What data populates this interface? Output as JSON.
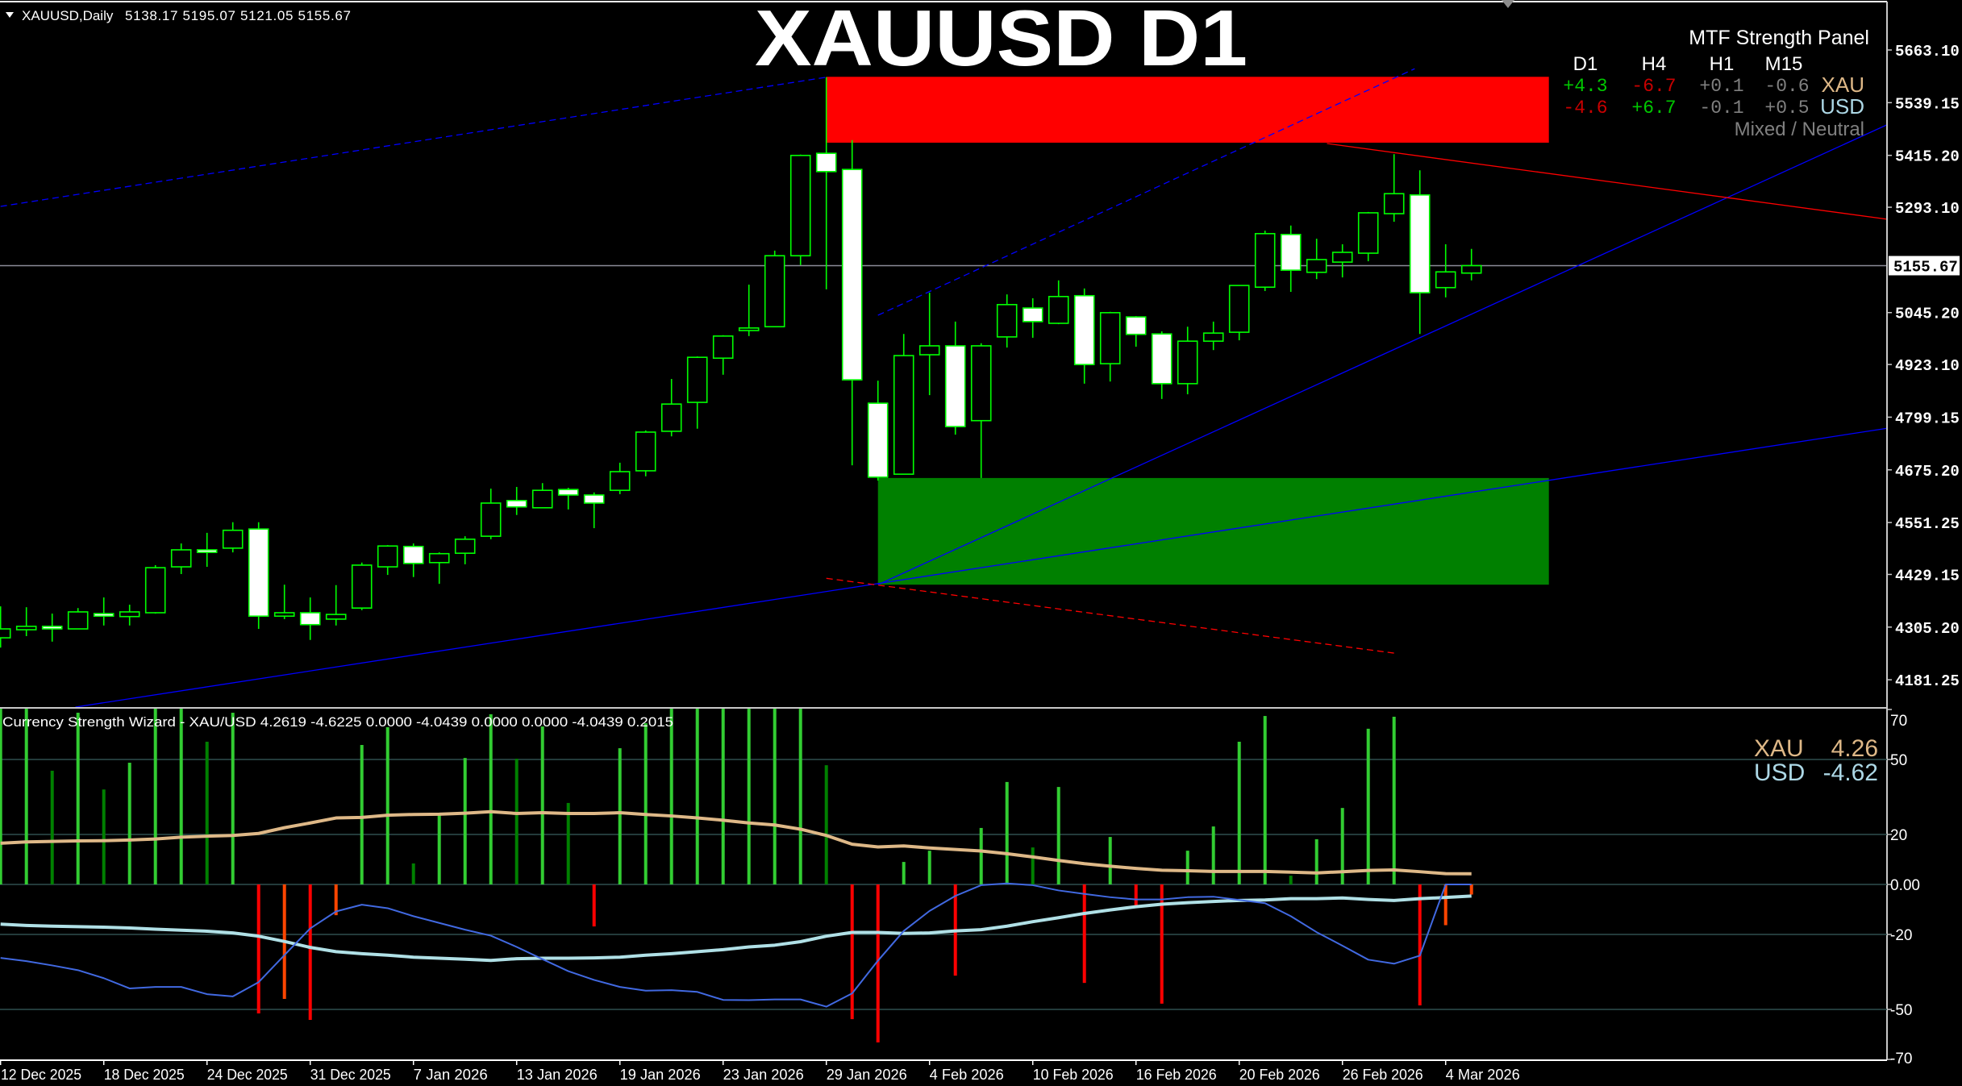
{
  "header": {
    "symbol_period": "XAUUSD,Daily",
    "ohlc": "5138.17 5195.07 5121.05 5155.67"
  },
  "watermark_title": "XAUUSD D1",
  "mtf_panel": {
    "title": "MTF Strength Panel",
    "timeframes": [
      "D1",
      "H4",
      "H1",
      "M15"
    ],
    "rows": [
      {
        "currency": "XAU",
        "values": [
          "+4.3",
          "-6.7",
          "+0.1",
          "-0.6"
        ],
        "value_colors": [
          "#00c800",
          "#c80000",
          "#808080",
          "#808080"
        ],
        "label_color": "#deb887"
      },
      {
        "currency": "USD",
        "values": [
          "-4.6",
          "+6.7",
          "-0.1",
          "+0.5"
        ],
        "value_colors": [
          "#c80000",
          "#00c800",
          "#808080",
          "#808080"
        ],
        "label_color": "#add8e6"
      }
    ],
    "status": "Mixed / Neutral"
  },
  "indicator_legend": {
    "rows": [
      {
        "currency": "XAU",
        "value": "4.26",
        "color": "#deb887"
      },
      {
        "currency": "USD",
        "value": "-4.62",
        "color": "#add8e6"
      }
    ]
  },
  "colors": {
    "background": "#000000",
    "candle_outline": "#00ff00",
    "bear_body": "#ffffff",
    "bull_body": "#000000",
    "supply_zone": "#ff0000",
    "demand_zone": "#008000",
    "trendline_blue": "#0000ff",
    "trendline_red": "#ff0000",
    "current_price_line": "#8c8c99",
    "grid": "#2f4f4f",
    "hist_bull_strong": "#32cd32",
    "hist_bull_weak": "#008000",
    "hist_bear_strong": "#ff0000",
    "hist_bear_weak": "#ff4500",
    "xau_line": "#deb887",
    "usd_line": "#b0e0e6",
    "signal_line": "#4169e1"
  },
  "chart_data": [
    {
      "type": "candlestick",
      "symbol": "XAUUSD",
      "timeframe": "Daily",
      "current_price": "5155.67",
      "x_tick_labels": [
        "12 Dec 2025",
        "18 Dec 2025",
        "24 Dec 2025",
        "31 Dec 2025",
        "7 Jan 2026",
        "13 Jan 2026",
        "19 Jan 2026",
        "23 Jan 2026",
        "29 Jan 2026",
        "4 Feb 2026",
        "10 Feb 2026",
        "16 Feb 2026",
        "20 Feb 2026",
        "26 Feb 2026",
        "4 Mar 2026"
      ],
      "y_tick_labels": [
        "5663.10",
        "5539.15",
        "5415.20",
        "5293.10",
        "5045.20",
        "4923.10",
        "4799.15",
        "4675.20",
        "4551.25",
        "4429.15",
        "4305.20",
        "4181.25"
      ],
      "ylim": [
        4117,
        5780
      ],
      "open": [
        4280,
        4299,
        4307,
        4301,
        4337,
        4330,
        4339,
        4447,
        4487,
        4491,
        4536,
        4331,
        4339,
        4324,
        4350,
        4447,
        4495,
        4457,
        4479,
        4519,
        4603,
        4586,
        4629,
        4616,
        4627,
        4673,
        4766,
        4834,
        4938,
        5003,
        5012,
        5179,
        5420,
        5382,
        4832,
        4665,
        4946,
        4967,
        4791,
        4988,
        5056,
        5020,
        5085,
        4925,
        5035,
        4995,
        4878,
        4978,
        4999,
        5105,
        5229,
        5140,
        5164,
        5185,
        5278,
        5322,
        5104,
        5138.17
      ],
      "high": [
        4354,
        4352,
        4337,
        4350,
        4375,
        4358,
        4451,
        4502,
        4527,
        4552,
        4552,
        4405,
        4375,
        4404,
        4457,
        4498,
        4502,
        4481,
        4519,
        4631,
        4635,
        4644,
        4633,
        4622,
        4692,
        4768,
        4889,
        4942,
        4992,
        5111,
        5191,
        5417,
        5599,
        5451,
        4885,
        4995,
        5092,
        5024,
        4973,
        5088,
        5079,
        5121,
        5102,
        5047,
        5037,
        5001,
        5012,
        5024,
        5109,
        5238,
        5250,
        5219,
        5206,
        5282,
        5418,
        5380,
        5206,
        5195.07
      ],
      "low": [
        4257,
        4284,
        4271,
        4301,
        4309,
        4309,
        4337,
        4430,
        4447,
        4481,
        4301,
        4324,
        4275,
        4309,
        4345,
        4428,
        4423,
        4407,
        4453,
        4512,
        4569,
        4586,
        4582,
        4538,
        4618,
        4660,
        4754,
        4772,
        4899,
        4990,
        5012,
        5157,
        5100,
        4686,
        4650,
        4665,
        4851,
        4758,
        4656,
        4963,
        4986,
        5018,
        4878,
        4883,
        4965,
        4842,
        4853,
        4957,
        4980,
        5096,
        5094,
        5124,
        5128,
        5166,
        5259,
        4995,
        5081,
        5121.05
      ],
      "close": [
        4301,
        4307,
        4301,
        4341,
        4331,
        4341,
        4445,
        4487,
        4481,
        4533,
        4331,
        4339,
        4311,
        4335,
        4451,
        4496,
        4455,
        4478,
        4512,
        4597,
        4588,
        4627,
        4616,
        4597,
        4671,
        4764,
        4830,
        4940,
        4990,
        5009,
        5179,
        5415,
        5377,
        4887,
        4658,
        4944,
        4967,
        4777,
        4967,
        5064,
        5024,
        5083,
        4923,
        5045,
        4994,
        4878,
        4978,
        4997,
        5109,
        5231,
        5145,
        5170,
        5187,
        5280,
        5325,
        5092,
        5141,
        5155.67
      ],
      "zones": [
        {
          "kind": "supply",
          "from_bar": 32,
          "to_bar": 60,
          "price_top": 5600,
          "price_bottom": 5445,
          "color": "#ff0000"
        },
        {
          "kind": "demand",
          "from_bar": 34,
          "to_bar": 60,
          "price_top": 4656,
          "price_bottom": 4405,
          "color": "#008000"
        }
      ],
      "trendlines": [
        {
          "bar1": 0,
          "price1": 5295,
          "bar2": 32,
          "price2": 5599,
          "color": "#0000ff",
          "dashed": true
        },
        {
          "bar1": 34,
          "price1": 5039,
          "bar2": 54.8,
          "price2": 5619,
          "color": "#0000ff",
          "dashed": true
        },
        {
          "bar1": 34,
          "price1": 4405,
          "bar2": 73.1,
          "price2": 5487,
          "color": "#0000ff",
          "dashed": false
        },
        {
          "bar1": 2.9,
          "price1": 4117,
          "bar2": 73.1,
          "price2": 4773,
          "color": "#0000ff",
          "dashed": false
        },
        {
          "bar1": 51.4,
          "price1": 5443,
          "bar2": 73.1,
          "price2": 5265,
          "color": "#ff0000",
          "dashed": false
        },
        {
          "bar1": 32,
          "price1": 4420,
          "bar2": 54,
          "price2": 4244,
          "color": "#ff0000",
          "dashed": true
        }
      ]
    },
    {
      "type": "bar",
      "title": "Currency Strength Wizard - XAU/USD 4.2619 -4.6225 0.0000 -4.0439 0.0000 0.0000 -4.0439 0.2015",
      "y_tick_labels": [
        "70",
        "50",
        "20",
        "0.00",
        "-20",
        "-50",
        "-70"
      ],
      "y_ticks": [
        70,
        50,
        20,
        0,
        -20,
        -50,
        -70
      ],
      "gridlines": [
        50,
        20,
        0,
        -20,
        -50
      ],
      "ylim": [
        -70,
        70
      ],
      "histogram": [
        75,
        75,
        45.5,
        68.7,
        38,
        48.7,
        75,
        75,
        57.1,
        68.7,
        -51.6,
        -45.8,
        -54.2,
        -12.3,
        55.8,
        62.9,
        8.4,
        28.7,
        50.6,
        68.1,
        50.3,
        63.2,
        32.6,
        -16.8,
        54.5,
        64.5,
        75,
        75,
        75,
        75,
        75,
        75,
        47.7,
        -53.9,
        -63.2,
        9,
        13.5,
        -36.5,
        22.6,
        41,
        14.8,
        39,
        -39.4,
        19,
        -9.2,
        -47.7,
        13.5,
        23.2,
        57.1,
        67.4,
        3.5,
        18.1,
        30.6,
        62.3,
        67.1,
        -48.4,
        -16.3,
        -4.04
      ],
      "histogram_colors": [
        "bs",
        "bs",
        "bw",
        "bs",
        "bw",
        "bs",
        "bs",
        "bs",
        "bw",
        "bs",
        "rs",
        "rw",
        "rs",
        "rw",
        "bs",
        "bs",
        "bw",
        "bs",
        "bs",
        "bs",
        "bw",
        "bs",
        "bw",
        "rs",
        "bs",
        "bs",
        "bs",
        "bs",
        "bs",
        "bs",
        "bs",
        "bs",
        "bw",
        "rs",
        "rs",
        "bs",
        "bs",
        "rs",
        "bs",
        "bs",
        "bw",
        "bs",
        "rs",
        "bs",
        "rs",
        "rs",
        "bs",
        "bs",
        "bs",
        "bs",
        "bw",
        "bs",
        "bs",
        "bs",
        "bs",
        "rs",
        "rw",
        "rw"
      ],
      "series": [
        {
          "name": "XAU",
          "color": "#deb887",
          "values": [
            16.5,
            17,
            17.2,
            17.4,
            17.5,
            17.8,
            18.2,
            18.9,
            19.3,
            19.6,
            20.4,
            22.7,
            24.6,
            26.6,
            26.8,
            27.7,
            28,
            28.1,
            28.5,
            29.1,
            28.4,
            28.7,
            28.4,
            28.4,
            28.7,
            28,
            27.4,
            26.6,
            25.7,
            24.6,
            23.8,
            22.1,
            19.6,
            16.1,
            15,
            15.4,
            14.6,
            14,
            13.4,
            12.3,
            11,
            9.6,
            8.3,
            7.3,
            6.4,
            5.7,
            5.5,
            5.2,
            5.2,
            5.2,
            4.9,
            4.6,
            5.1,
            5.6,
            5.8,
            5.1,
            4.3,
            4.26
          ]
        },
        {
          "name": "USD",
          "color": "#b0e0e6",
          "values": [
            -15.9,
            -16.4,
            -16.7,
            -16.9,
            -17.1,
            -17.4,
            -17.9,
            -18.3,
            -18.7,
            -19.4,
            -20.7,
            -22.8,
            -25.2,
            -26.9,
            -27.7,
            -28.3,
            -29.1,
            -29.5,
            -29.9,
            -30.4,
            -29.7,
            -29.5,
            -29.5,
            -29.4,
            -29.1,
            -28.3,
            -27.7,
            -26.9,
            -26.1,
            -25,
            -24.3,
            -22.9,
            -20.7,
            -19.2,
            -19.2,
            -19.6,
            -19.4,
            -18.6,
            -18.1,
            -16.7,
            -14.9,
            -13.3,
            -11.6,
            -10.2,
            -8.9,
            -7.9,
            -7.3,
            -6.8,
            -6.4,
            -6.2,
            -5.7,
            -5.7,
            -5.4,
            -6,
            -6.4,
            -5.7,
            -5.2,
            -4.62
          ]
        },
        {
          "color": "#4169e1",
          "values": [
            -29.4,
            -30.7,
            -32.4,
            -34.3,
            -37.5,
            -41.6,
            -41,
            -41,
            -43.9,
            -44.8,
            -39.1,
            -28.3,
            -17.6,
            -10.8,
            -8.1,
            -9.5,
            -12.7,
            -15.4,
            -18.1,
            -20.5,
            -25,
            -29.9,
            -34.7,
            -38.2,
            -41,
            -42.5,
            -42.3,
            -43,
            -46.2,
            -46.3,
            -46,
            -46,
            -48.9,
            -43.6,
            -30.5,
            -18.6,
            -10.6,
            -4.6,
            -0.3,
            0.4,
            -0.3,
            -2.4,
            -3.8,
            -5.1,
            -6,
            -6,
            -5.1,
            -4.9,
            -6.2,
            -7.5,
            -12.7,
            -19.1,
            -24.5,
            -30.1,
            -31.7,
            -28.5,
            0,
            0
          ]
        }
      ]
    }
  ]
}
